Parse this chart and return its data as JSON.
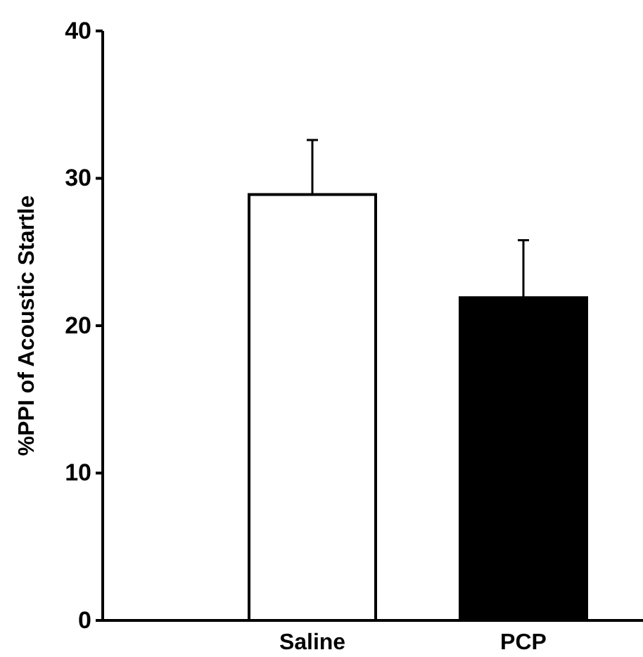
{
  "chart_data": {
    "type": "bar",
    "ylabel": "%PPI of Acoustic Startle",
    "categories": [
      "Saline",
      "PCP"
    ],
    "values": [
      28.9,
      21.9
    ],
    "colors": [
      "#ffffff",
      "#000000"
    ],
    "errors": [
      [
        28.9,
        32.6
      ],
      [
        21.9,
        25.8
      ]
    ],
    "ylim": [
      0,
      40
    ],
    "yticks": [
      0,
      10,
      20,
      30,
      40
    ]
  }
}
